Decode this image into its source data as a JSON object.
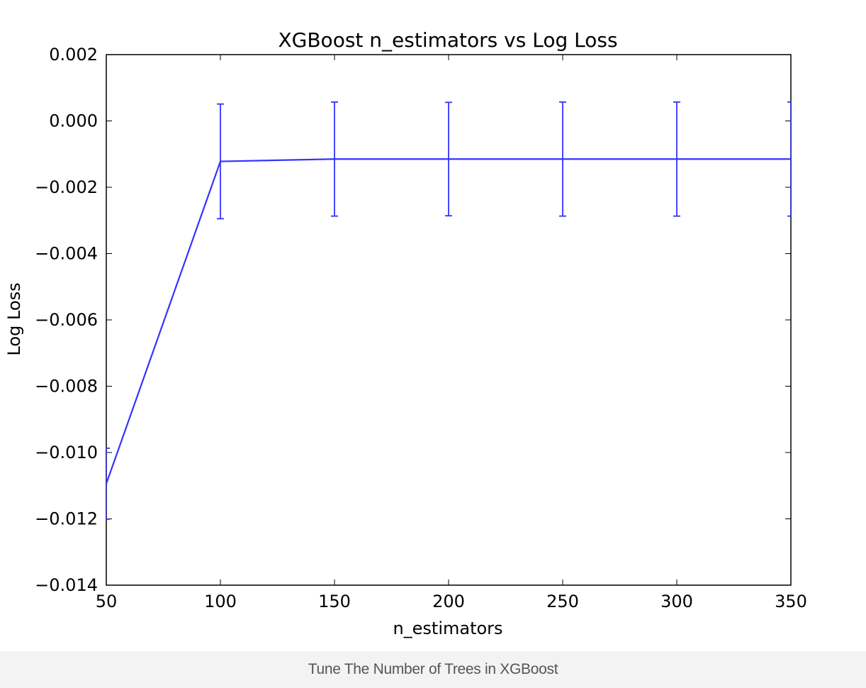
{
  "caption": "Tune The Number of Trees in XGBoost",
  "colors": {
    "series": "#3333ff",
    "axes": "#000000",
    "caption_bg": "#f3f3f3",
    "caption_text": "#555555"
  },
  "chart_data": {
    "type": "line",
    "title": "XGBoost n_estimators vs Log Loss",
    "xlabel": "n_estimators",
    "ylabel": "Log Loss",
    "xlim": [
      50,
      350
    ],
    "ylim": [
      -0.014,
      0.002
    ],
    "x_ticks": [
      50,
      100,
      150,
      200,
      250,
      300,
      350
    ],
    "x_tick_labels": [
      "50",
      "100",
      "150",
      "200",
      "250",
      "300",
      "350"
    ],
    "y_ticks": [
      0.002,
      0.0,
      -0.002,
      -0.004,
      -0.006,
      -0.008,
      -0.01,
      -0.012,
      -0.014
    ],
    "y_tick_labels": [
      "0.002",
      "0.000",
      "−0.002",
      "−0.004",
      "−0.006",
      "−0.008",
      "−0.010",
      "−0.012",
      "−0.014"
    ],
    "grid": false,
    "series": [
      {
        "x": [
          50,
          100,
          150,
          200,
          250,
          300,
          350
        ],
        "y": [
          -0.01094,
          -0.00122,
          -0.00115,
          -0.00115,
          -0.00115,
          -0.00115,
          -0.00115
        ],
        "yerr": [
          0.00107,
          0.00173,
          0.00172,
          0.00171,
          0.00172,
          0.00172,
          0.00172
        ]
      }
    ]
  }
}
